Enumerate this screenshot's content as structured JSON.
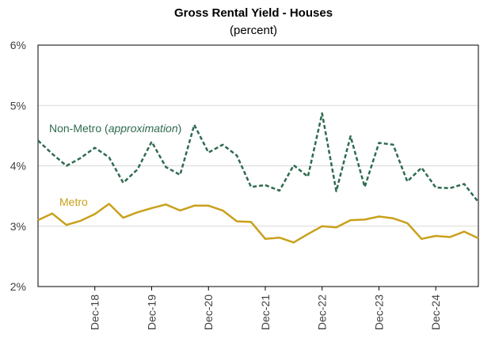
{
  "chart_data": {
    "type": "line",
    "title": "Gross Rental Yield - Houses",
    "subtitle": "(percent)",
    "xlabel": "",
    "ylabel": "",
    "ylim": [
      2,
      6
    ],
    "y_ticks": [
      "2%",
      "3%",
      "4%",
      "5%",
      "6%"
    ],
    "grid": true,
    "x_tick_labels": [
      "Dec-18",
      "Dec-19",
      "Dec-20",
      "Dec-21",
      "Dec-22",
      "Dec-23",
      "Dec-24"
    ],
    "x_tick_indices": [
      4,
      8,
      12,
      16,
      20,
      24,
      28
    ],
    "series": [
      {
        "name": "Non-Metro (approximation)",
        "label_main": "Non-Metro (",
        "label_italic": "approximation",
        "label_end": ")",
        "color": "#2E6B4F",
        "style": "dashed",
        "values": [
          4.42,
          4.2,
          4.0,
          4.13,
          4.3,
          4.14,
          3.72,
          3.94,
          4.4,
          3.98,
          3.85,
          4.68,
          4.22,
          4.35,
          4.17,
          3.65,
          3.68,
          3.59,
          4.01,
          3.82,
          4.87,
          3.58,
          4.49,
          3.65,
          4.38,
          4.35,
          3.74,
          3.97,
          3.64,
          3.63,
          3.7,
          3.4
        ]
      },
      {
        "name": "Metro",
        "color": "#C9A01B",
        "style": "solid",
        "values": [
          3.1,
          3.21,
          3.02,
          3.09,
          3.2,
          3.37,
          3.14,
          3.23,
          3.3,
          3.36,
          3.26,
          3.34,
          3.34,
          3.26,
          3.08,
          3.07,
          2.79,
          2.81,
          2.73,
          2.87,
          3.0,
          2.98,
          3.1,
          3.11,
          3.16,
          3.13,
          3.05,
          2.79,
          2.84,
          2.82,
          2.91,
          2.8
        ]
      }
    ]
  }
}
